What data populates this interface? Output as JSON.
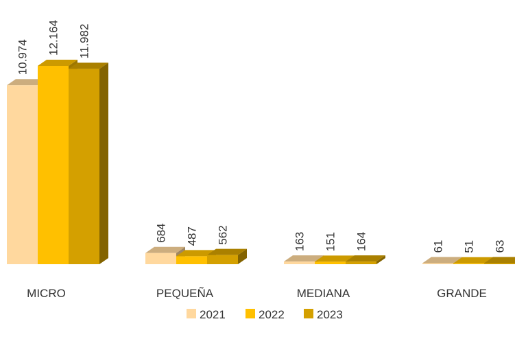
{
  "chart_data": {
    "type": "bar3d",
    "categories": [
      "MICRO",
      "PEQUEÑA",
      "MEDIANA",
      "GRANDE"
    ],
    "series": [
      {
        "name": "2021",
        "color": "#FFD89E",
        "values": [
          10974,
          684,
          163,
          61
        ],
        "value_labels": [
          "10.974",
          "684",
          "163",
          "61"
        ]
      },
      {
        "name": "2022",
        "color": "#FFC000",
        "values": [
          12164,
          487,
          151,
          51
        ],
        "value_labels": [
          "12.164",
          "487",
          "151",
          "51"
        ]
      },
      {
        "name": "2023",
        "color": "#D4A000",
        "values": [
          11982,
          562,
          164,
          63
        ],
        "value_labels": [
          "11.982",
          "562",
          "164",
          "63"
        ]
      }
    ],
    "legend": "bottom"
  }
}
